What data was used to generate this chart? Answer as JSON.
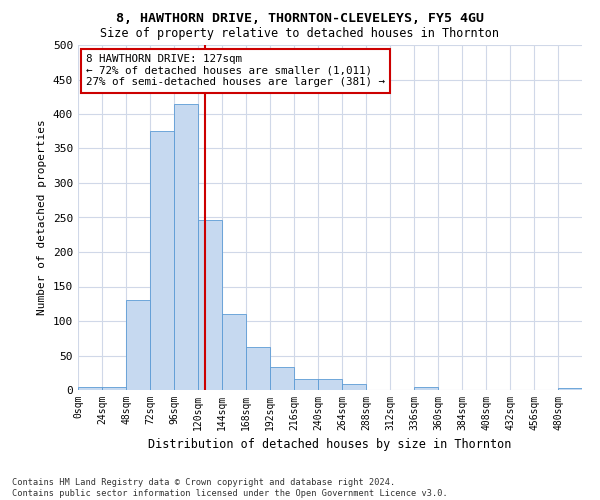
{
  "title1": "8, HAWTHORN DRIVE, THORNTON-CLEVELEYS, FY5 4GU",
  "title2": "Size of property relative to detached houses in Thornton",
  "xlabel": "Distribution of detached houses by size in Thornton",
  "ylabel": "Number of detached properties",
  "bin_edges": [
    0,
    24,
    48,
    72,
    96,
    120,
    144,
    168,
    192,
    216,
    240,
    264,
    288,
    312,
    336,
    360,
    384,
    408,
    432,
    456,
    480,
    504
  ],
  "bar_heights": [
    4,
    5,
    130,
    375,
    415,
    247,
    110,
    63,
    33,
    16,
    16,
    8,
    0,
    0,
    5,
    0,
    0,
    0,
    0,
    0,
    3
  ],
  "bar_color": "#c6d9f0",
  "bar_edge_color": "#5b9bd5",
  "property_size": 127,
  "vline_color": "#cc0000",
  "annotation_text": "8 HAWTHORN DRIVE: 127sqm\n← 72% of detached houses are smaller (1,011)\n27% of semi-detached houses are larger (381) →",
  "annotation_box_color": "#ffffff",
  "annotation_box_edge": "#cc0000",
  "yticks": [
    0,
    50,
    100,
    150,
    200,
    250,
    300,
    350,
    400,
    450,
    500
  ],
  "xtick_labels": [
    "0sqm",
    "24sqm",
    "48sqm",
    "72sqm",
    "96sqm",
    "120sqm",
    "144sqm",
    "168sqm",
    "192sqm",
    "216sqm",
    "240sqm",
    "264sqm",
    "288sqm",
    "312sqm",
    "336sqm",
    "360sqm",
    "384sqm",
    "408sqm",
    "432sqm",
    "456sqm",
    "480sqm"
  ],
  "footer": "Contains HM Land Registry data © Crown copyright and database right 2024.\nContains public sector information licensed under the Open Government Licence v3.0.",
  "bg_color": "#ffffff",
  "grid_color": "#d0d8e8",
  "ylim": [
    0,
    500
  ],
  "xlim": [
    0,
    504
  ]
}
